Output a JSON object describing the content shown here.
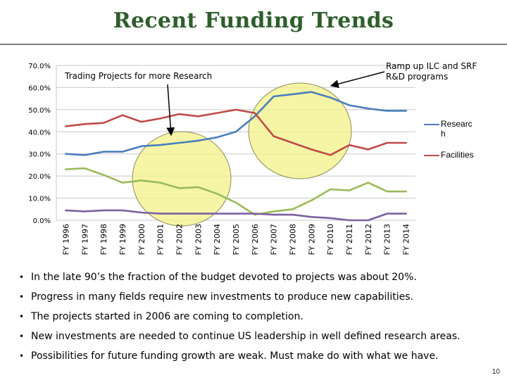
{
  "slide": {
    "title": "Recent Funding Trends",
    "page_number": "10"
  },
  "annotations": {
    "left": "Trading Projects for more Research",
    "right_line1": "Ramp up ILC and SRF",
    "right_line2": "R&D programs"
  },
  "bullets": [
    "In the late 90’s the fraction of the budget devoted to projects was about 20%.",
    "Progress in many fields require new investments to produce new capabilities.",
    "The projects started in 2006 are coming to completion.",
    "New investments are needed to continue US leadership in well defined research areas.",
    "Possibilities for future funding growth are weak.  Must make do with what we have."
  ],
  "chart_data": {
    "type": "line",
    "title": "",
    "xlabel": "",
    "ylabel": "",
    "ylim": [
      0,
      70
    ],
    "y_ticks": [
      "0.0%",
      "10.0%",
      "20.0%",
      "30.0%",
      "40.0%",
      "50.0%",
      "60.0%",
      "70.0%"
    ],
    "grid": true,
    "legend_position": "right",
    "categories": [
      "FY 1996",
      "FY 1997",
      "FY 1998",
      "FY 1999",
      "FY 2000",
      "FY 2001",
      "FY 2002",
      "FY 2003",
      "FY 2004",
      "FY 2005",
      "FY 2006",
      "FY 2007",
      "FY 2008",
      "FY 2009",
      "FY 2010",
      "FY 2011",
      "FY 2012",
      "FY 2013",
      "FY 2014"
    ],
    "series": [
      {
        "name": "Researc h",
        "legend_line1": "Researc",
        "legend_line2": "h",
        "color": "#4a7ebb",
        "values": [
          30.0,
          29.5,
          31.0,
          31.0,
          33.5,
          34.0,
          35.0,
          36.0,
          37.5,
          40.0,
          47.0,
          56.0,
          57.0,
          58.0,
          55.5,
          52.0,
          50.5,
          49.5,
          49.5
        ]
      },
      {
        "name": "Facilities",
        "legend_line1": "Facilities",
        "legend_line2": "",
        "color": "#be4b48",
        "values": [
          42.5,
          43.5,
          44.0,
          47.5,
          44.5,
          46.0,
          48.0,
          47.0,
          48.5,
          50.0,
          48.5,
          38.0,
          35.0,
          32.0,
          29.5,
          34.0,
          32.0,
          35.0,
          35.0
        ]
      },
      {
        "name": "",
        "color": "#9bbb59",
        "values": [
          23.0,
          23.5,
          20.5,
          17.0,
          18.0,
          17.0,
          14.5,
          15.0,
          12.0,
          8.0,
          2.5,
          4.0,
          5.0,
          9.0,
          14.0,
          13.5,
          17.0,
          13.0,
          13.0
        ]
      },
      {
        "name": "",
        "color": "#7d60a0",
        "values": [
          4.5,
          4.0,
          4.5,
          4.5,
          3.5,
          3.0,
          3.0,
          3.0,
          3.0,
          3.0,
          3.0,
          2.5,
          2.5,
          1.5,
          1.0,
          0.0,
          0.0,
          3.0,
          3.0
        ]
      }
    ]
  },
  "highlight_colors": {
    "circle_fill": "#f2f28c",
    "circle_stroke": "#8a8a5a"
  }
}
